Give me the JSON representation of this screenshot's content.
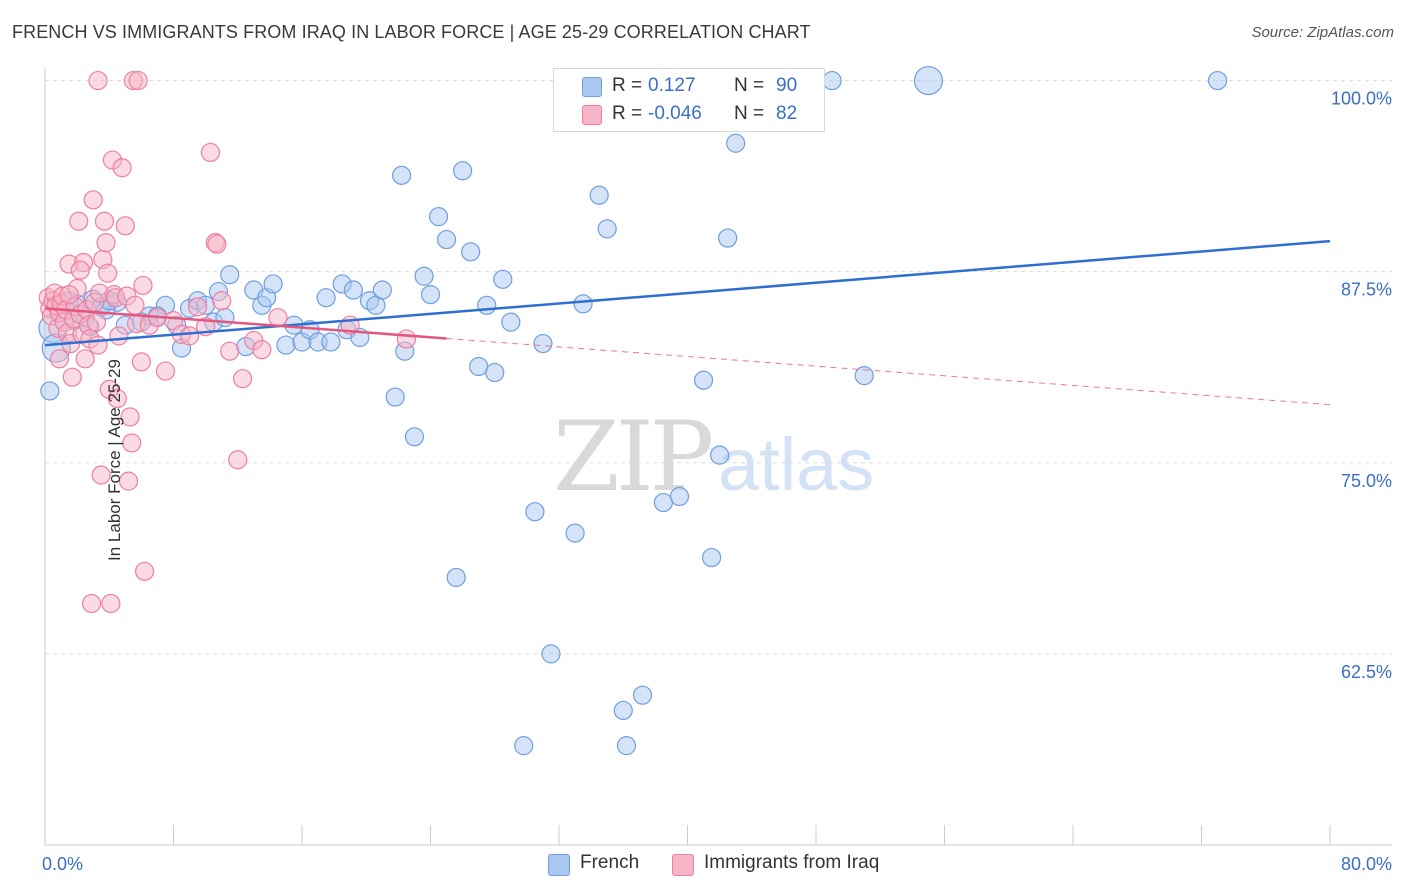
{
  "header": {
    "title": "FRENCH VS IMMIGRANTS FROM IRAQ IN LABOR FORCE | AGE 25-29 CORRELATION CHART",
    "source": "Source: ZipAtlas.com"
  },
  "stats": [
    {
      "r_label": "R =",
      "r_value": "0.127",
      "n_label": "N =",
      "n_value": "90",
      "color": "#a9c7ef"
    },
    {
      "r_label": "R =",
      "r_value": "-0.046",
      "n_label": "N =",
      "n_value": "82",
      "color": "#f6b6c8"
    }
  ],
  "legend": [
    {
      "label": "French",
      "color": "#a9c7ef"
    },
    {
      "label": "Immigrants from Iraq",
      "color": "#f6b6c8"
    }
  ],
  "chart_data": {
    "type": "scatter",
    "title": "FRENCH VS IMMIGRANTS FROM IRAQ IN LABOR FORCE | AGE 25-29 CORRELATION CHART",
    "ylabel": "In Labor Force | Age 25-29",
    "xlabel": "",
    "xlim": [
      0,
      80
    ],
    "ylim": [
      50,
      102
    ],
    "x_tick_labels": [
      "0.0%",
      "80.0%"
    ],
    "y_ticks": [
      {
        "value": 100,
        "label": "100.0%"
      },
      {
        "value": 87.5,
        "label": "87.5%"
      },
      {
        "value": 75,
        "label": "75.0%"
      },
      {
        "value": 62.5,
        "label": "62.5%"
      }
    ],
    "grid": true,
    "legend_position": "bottom",
    "watermark": "ZIPatlas",
    "series": [
      {
        "name": "French",
        "color": "#6f9fe0",
        "fill": "#a9c7ef",
        "trend": {
          "x": [
            0,
            80
          ],
          "y": [
            82.7,
            89.5
          ],
          "color": "#2f6fd0",
          "dashed_after": null
        },
        "points": [
          [
            0.5,
            83.8
          ],
          [
            0.7,
            82.5
          ],
          [
            1.0,
            85.5
          ],
          [
            1.5,
            85.6
          ],
          [
            2.0,
            85.4
          ],
          [
            2.5,
            84.5
          ],
          [
            3.0,
            85.7
          ],
          [
            3.5,
            85.2
          ],
          [
            4.5,
            85.5
          ],
          [
            5.0,
            84.0
          ],
          [
            6.5,
            84.6
          ],
          [
            7.5,
            85.3
          ],
          [
            8.2,
            84.0
          ],
          [
            8.5,
            82.5
          ],
          [
            9.0,
            85.1
          ],
          [
            9.5,
            85.6
          ],
          [
            10.0,
            85.3
          ],
          [
            10.5,
            84.2
          ],
          [
            10.8,
            86.2
          ],
          [
            11.2,
            84.5
          ],
          [
            11.5,
            87.3
          ],
          [
            12.5,
            82.6
          ],
          [
            13.0,
            86.3
          ],
          [
            13.5,
            85.3
          ],
          [
            13.8,
            85.8
          ],
          [
            14.2,
            86.7
          ],
          [
            15.0,
            82.7
          ],
          [
            15.5,
            84.0
          ],
          [
            16.0,
            82.9
          ],
          [
            16.5,
            83.7
          ],
          [
            17.0,
            82.9
          ],
          [
            17.5,
            85.8
          ],
          [
            17.8,
            82.9
          ],
          [
            18.5,
            86.7
          ],
          [
            18.8,
            83.7
          ],
          [
            19.2,
            86.3
          ],
          [
            19.6,
            83.2
          ],
          [
            20.2,
            85.6
          ],
          [
            20.6,
            85.3
          ],
          [
            21.0,
            86.3
          ],
          [
            21.8,
            79.3
          ],
          [
            22.2,
            93.8
          ],
          [
            22.4,
            82.3
          ],
          [
            23.0,
            76.7
          ],
          [
            23.6,
            87.2
          ],
          [
            24.0,
            86.0
          ],
          [
            24.5,
            91.1
          ],
          [
            25.0,
            89.6
          ],
          [
            25.6,
            67.5
          ],
          [
            26.0,
            94.1
          ],
          [
            26.5,
            88.8
          ],
          [
            27.0,
            81.3
          ],
          [
            27.5,
            85.3
          ],
          [
            28.0,
            80.9
          ],
          [
            28.5,
            87.0
          ],
          [
            29.0,
            84.2
          ],
          [
            29.8,
            56.5
          ],
          [
            30.5,
            71.8
          ],
          [
            31.0,
            82.8
          ],
          [
            31.5,
            62.5
          ],
          [
            32.5,
            100.0
          ],
          [
            33.0,
            70.4
          ],
          [
            33.5,
            85.4
          ],
          [
            34.5,
            92.5
          ],
          [
            35.0,
            90.3
          ],
          [
            36.0,
            58.8
          ],
          [
            36.2,
            56.5
          ],
          [
            37.2,
            59.8
          ],
          [
            38.0,
            100.0
          ],
          [
            38.5,
            72.4
          ],
          [
            39.5,
            72.8
          ],
          [
            40.5,
            100.0
          ],
          [
            41.0,
            80.4
          ],
          [
            41.5,
            68.8
          ],
          [
            42.0,
            75.5
          ],
          [
            42.5,
            89.7
          ],
          [
            43.0,
            95.9
          ],
          [
            44.0,
            100.0
          ],
          [
            44.5,
            100.0
          ],
          [
            49.0,
            100.0
          ],
          [
            51.0,
            80.7
          ],
          [
            55.0,
            100.0
          ],
          [
            73.0,
            100.0
          ],
          [
            0.3,
            79.7
          ],
          [
            1.8,
            84.3
          ],
          [
            2.8,
            83.9
          ],
          [
            3.8,
            85.0
          ],
          [
            6.0,
            84.2
          ],
          [
            7.0,
            84.6
          ],
          [
            4.0,
            85.6
          ]
        ]
      },
      {
        "name": "Immigrants from Iraq",
        "color": "#ee7fa0",
        "fill": "#f6b6c8",
        "trend": {
          "x": [
            0,
            80
          ],
          "y": [
            85.1,
            78.8
          ],
          "color": "#e3577f",
          "dashed_after": 25
        },
        "points": [
          [
            0.2,
            85.8
          ],
          [
            0.3,
            85.1
          ],
          [
            0.4,
            84.6
          ],
          [
            0.5,
            85.6
          ],
          [
            0.6,
            86.1
          ],
          [
            0.7,
            85.3
          ],
          [
            0.8,
            83.8
          ],
          [
            0.9,
            84.8
          ],
          [
            1.0,
            85.4
          ],
          [
            1.1,
            85.9
          ],
          [
            1.2,
            84.2
          ],
          [
            1.3,
            85.0
          ],
          [
            1.4,
            83.5
          ],
          [
            1.5,
            88.0
          ],
          [
            1.6,
            82.8
          ],
          [
            1.7,
            80.6
          ],
          [
            1.8,
            84.4
          ],
          [
            1.9,
            85.2
          ],
          [
            2.0,
            86.4
          ],
          [
            2.1,
            90.8
          ],
          [
            2.2,
            84.7
          ],
          [
            2.3,
            83.4
          ],
          [
            2.4,
            88.1
          ],
          [
            2.5,
            81.8
          ],
          [
            2.6,
            85.0
          ],
          [
            2.7,
            84.0
          ],
          [
            2.8,
            83.1
          ],
          [
            2.9,
            65.8
          ],
          [
            3.0,
            92.2
          ],
          [
            3.1,
            85.5
          ],
          [
            3.2,
            84.2
          ],
          [
            3.3,
            82.7
          ],
          [
            3.4,
            86.1
          ],
          [
            3.5,
            74.2
          ],
          [
            3.6,
            88.3
          ],
          [
            3.7,
            90.8
          ],
          [
            3.8,
            89.4
          ],
          [
            3.9,
            87.4
          ],
          [
            4.0,
            79.8
          ],
          [
            4.1,
            65.8
          ],
          [
            4.2,
            94.8
          ],
          [
            4.3,
            86.0
          ],
          [
            4.4,
            85.8
          ],
          [
            4.5,
            79.2
          ],
          [
            4.6,
            83.3
          ],
          [
            4.8,
            94.3
          ],
          [
            5.0,
            90.5
          ],
          [
            5.1,
            85.9
          ],
          [
            5.2,
            73.8
          ],
          [
            5.3,
            78.0
          ],
          [
            5.4,
            76.3
          ],
          [
            5.5,
            100.0
          ],
          [
            5.6,
            85.3
          ],
          [
            5.7,
            84.1
          ],
          [
            5.8,
            100.0
          ],
          [
            6.0,
            81.6
          ],
          [
            6.1,
            86.6
          ],
          [
            6.2,
            67.9
          ],
          [
            6.5,
            84.0
          ],
          [
            7.0,
            84.5
          ],
          [
            7.5,
            81.0
          ],
          [
            8.0,
            84.3
          ],
          [
            8.5,
            83.4
          ],
          [
            9.0,
            83.3
          ],
          [
            9.5,
            85.2
          ],
          [
            10.0,
            83.9
          ],
          [
            10.3,
            95.3
          ],
          [
            10.6,
            89.4
          ],
          [
            10.7,
            89.3
          ],
          [
            11.0,
            85.6
          ],
          [
            11.5,
            82.3
          ],
          [
            12.0,
            75.2
          ],
          [
            12.3,
            80.5
          ],
          [
            13.0,
            83.0
          ],
          [
            13.5,
            82.4
          ],
          [
            14.5,
            84.5
          ],
          [
            19.0,
            84.0
          ],
          [
            22.5,
            83.1
          ],
          [
            3.3,
            100.0
          ],
          [
            0.9,
            81.8
          ],
          [
            1.5,
            86.0
          ],
          [
            2.2,
            87.6
          ]
        ]
      }
    ]
  }
}
